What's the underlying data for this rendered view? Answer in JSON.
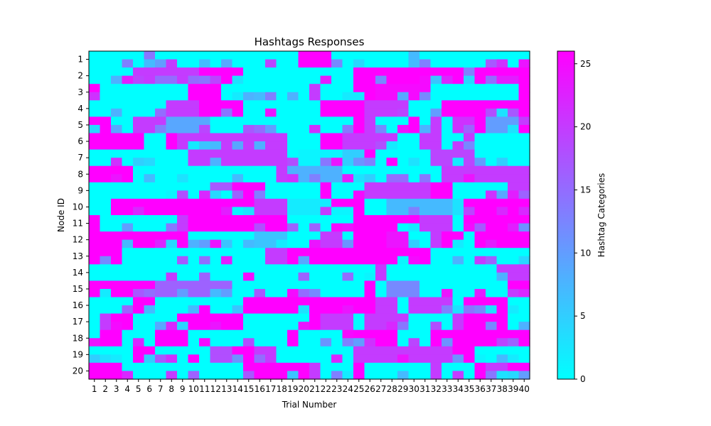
{
  "chart_data": {
    "type": "heatmap",
    "title": "Hashtags Responses",
    "xlabel": "Trial Number",
    "ylabel": "Node ID",
    "x_ticks": [
      "1",
      "2",
      "3",
      "4",
      "5",
      "6",
      "7",
      "8",
      "9",
      "10",
      "11",
      "12",
      "13",
      "14",
      "15",
      "16",
      "17",
      "18",
      "19",
      "20",
      "21",
      "22",
      "23",
      "24",
      "25",
      "26",
      "27",
      "28",
      "29",
      "30",
      "31",
      "32",
      "33",
      "34",
      "35",
      "36",
      "37",
      "38",
      "39",
      "40"
    ],
    "y_ticks": [
      "1",
      "2",
      "3",
      "4",
      "5",
      "6",
      "7",
      "8",
      "9",
      "10",
      "11",
      "12",
      "13",
      "14",
      "15",
      "16",
      "17",
      "18",
      "19",
      "20"
    ],
    "colorbar": {
      "label": "Hashtag Categories",
      "range": [
        0,
        26
      ],
      "ticks": [
        "0",
        "5",
        "10",
        "15",
        "20",
        "25"
      ],
      "colormap": [
        "#00ffff",
        "#ff00ff"
      ]
    },
    "grid": false,
    "values_note_unused": null
  }
}
